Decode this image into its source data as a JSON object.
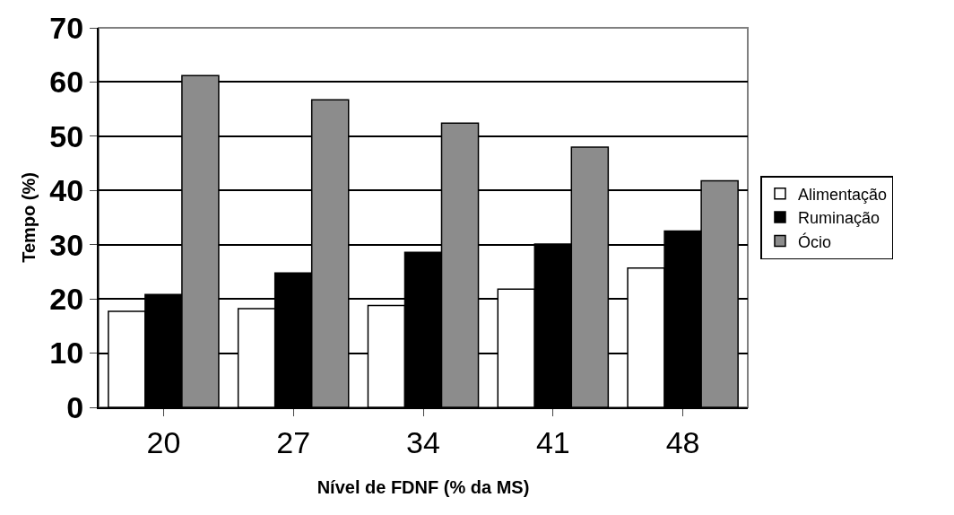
{
  "chart_data": {
    "type": "bar",
    "xlabel": "Nível de FDNF (% da MS)",
    "ylabel": "Tempo (%)",
    "categories": [
      "20",
      "27",
      "34",
      "41",
      "48"
    ],
    "series": [
      {
        "name": "Alimentação",
        "color": "#ffffff",
        "values": [
          17.7,
          18.2,
          18.8,
          21.8,
          25.7
        ]
      },
      {
        "name": "Ruminação",
        "color": "#000000",
        "values": [
          20.8,
          24.8,
          28.6,
          30.1,
          32.5
        ]
      },
      {
        "name": "Ócio",
        "color": "#8c8c8c",
        "values": [
          61.2,
          56.7,
          52.4,
          48.0,
          41.8
        ]
      }
    ],
    "ylim": [
      0,
      70
    ],
    "yticks": [
      0,
      10,
      20,
      30,
      40,
      50,
      60,
      70
    ],
    "grid": "y",
    "legend": "right"
  }
}
